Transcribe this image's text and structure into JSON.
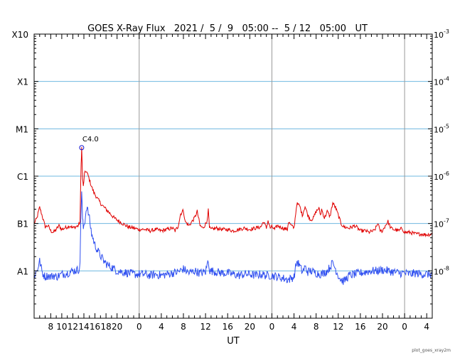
{
  "chart_data": {
    "type": "line",
    "title": "GOES X-Ray Flux   2021 /  5 /  9   05:00 --  5 / 12   05:00   UT",
    "xlabel": "UT",
    "ylabel": "",
    "y_scale": "log",
    "ylim": [
      1e-09,
      0.001
    ],
    "xlim": [
      0,
      72
    ],
    "x_units": "hours since 2021-05-09 05:00 UT",
    "x_tick_labels": [
      {
        "x": 3,
        "label": "8"
      },
      {
        "x": 5,
        "label": "10"
      },
      {
        "x": 7,
        "label": "12"
      },
      {
        "x": 9,
        "label": "14"
      },
      {
        "x": 11,
        "label": "16"
      },
      {
        "x": 13,
        "label": "18"
      },
      {
        "x": 15,
        "label": "20"
      },
      {
        "x": 19,
        "label": "0"
      },
      {
        "x": 23,
        "label": "4"
      },
      {
        "x": 27,
        "label": "8"
      },
      {
        "x": 31,
        "label": "12"
      },
      {
        "x": 35,
        "label": "16"
      },
      {
        "x": 39,
        "label": "20"
      },
      {
        "x": 43,
        "label": "0"
      },
      {
        "x": 47,
        "label": "4"
      },
      {
        "x": 51,
        "label": "8"
      },
      {
        "x": 55,
        "label": "12"
      },
      {
        "x": 59,
        "label": "16"
      },
      {
        "x": 63,
        "label": "20"
      },
      {
        "x": 67,
        "label": "0"
      },
      {
        "x": 71,
        "label": "4"
      }
    ],
    "day_boundaries_x": [
      19,
      43,
      67
    ],
    "left_axis_labels": [
      {
        "value": 1e-08,
        "label": "A1"
      },
      {
        "value": 1e-07,
        "label": "B1"
      },
      {
        "value": 1e-06,
        "label": "C1"
      },
      {
        "value": 1e-05,
        "label": "M1"
      },
      {
        "value": 0.0001,
        "label": "X1"
      },
      {
        "value": 0.001,
        "label": "X10"
      }
    ],
    "right_axis_labels": [
      {
        "value": 1e-08,
        "label": "10",
        "exp": "-8"
      },
      {
        "value": 1e-07,
        "label": "10",
        "exp": "-7"
      },
      {
        "value": 1e-06,
        "label": "10",
        "exp": "-6"
      },
      {
        "value": 1e-05,
        "label": "10",
        "exp": "-5"
      },
      {
        "value": 0.0001,
        "label": "10",
        "exp": "-4"
      },
      {
        "value": 0.001,
        "label": "10",
        "exp": "-3"
      }
    ],
    "grid_lines_y": [
      1e-08,
      1e-07,
      1e-06,
      1e-05,
      0.0001
    ],
    "annotation": {
      "x": 8.6,
      "y": 4e-06,
      "label": "C4.0"
    },
    "series": [
      {
        "color": "#e00000",
        "points": [
          [
            0,
            1e-07
          ],
          [
            0.5,
            1.3e-07
          ],
          [
            1,
            2.2e-07
          ],
          [
            1.5,
            1.4e-07
          ],
          [
            2,
            8.5e-08
          ],
          [
            2.5,
            9e-08
          ],
          [
            3,
            7e-08
          ],
          [
            3.5,
            6.5e-08
          ],
          [
            4,
            7.5e-08
          ],
          [
            4.5,
            9e-08
          ],
          [
            5,
            7.5e-08
          ],
          [
            5.5,
            8e-08
          ],
          [
            6,
            8.5e-08
          ],
          [
            6.5,
            9e-08
          ],
          [
            7,
            8e-08
          ],
          [
            7.5,
            8.5e-08
          ],
          [
            8,
            9e-08
          ],
          [
            8.3,
            1.1e-07
          ],
          [
            8.5,
            1.8e-06
          ],
          [
            8.6,
            4e-06
          ],
          [
            8.75,
            9e-07
          ],
          [
            8.9,
            6e-07
          ],
          [
            9.1,
            1.1e-06
          ],
          [
            9.4,
            1.3e-06
          ],
          [
            9.8,
            1e-06
          ],
          [
            10.3,
            6.5e-07
          ],
          [
            10.8,
            4.5e-07
          ],
          [
            11.5,
            3.3e-07
          ],
          [
            12.2,
            2.5e-07
          ],
          [
            13,
            2e-07
          ],
          [
            13.8,
            1.6e-07
          ],
          [
            14.5,
            1.3e-07
          ],
          [
            15.2,
            1.15e-07
          ],
          [
            16,
            1e-07
          ],
          [
            17,
            8.5e-08
          ],
          [
            18,
            8e-08
          ],
          [
            19,
            7.5e-08
          ],
          [
            20,
            7.5e-08
          ],
          [
            21,
            7e-08
          ],
          [
            22,
            7.5e-08
          ],
          [
            23,
            7e-08
          ],
          [
            24,
            7.5e-08
          ],
          [
            25,
            8e-08
          ],
          [
            25.5,
            7e-08
          ],
          [
            26,
            8.5e-08
          ],
          [
            26.5,
            1.6e-07
          ],
          [
            27,
            1.9e-07
          ],
          [
            27.3,
            1.1e-07
          ],
          [
            28,
            9e-08
          ],
          [
            29,
            1.3e-07
          ],
          [
            29.5,
            1.8e-07
          ],
          [
            30,
            9e-08
          ],
          [
            30.5,
            8e-08
          ],
          [
            31.2,
            1.05e-07
          ],
          [
            31.5,
            1.9e-07
          ],
          [
            31.7,
            8e-08
          ],
          [
            32,
            7.5e-08
          ],
          [
            33,
            8e-08
          ],
          [
            34,
            7.5e-08
          ],
          [
            35,
            7.5e-08
          ],
          [
            36,
            7e-08
          ],
          [
            37,
            7.5e-08
          ],
          [
            38,
            8e-08
          ],
          [
            39,
            7.5e-08
          ],
          [
            40,
            8e-08
          ],
          [
            41,
            8.5e-08
          ],
          [
            41.5,
            1.1e-07
          ],
          [
            42,
            8e-08
          ],
          [
            42.3,
            1.15e-07
          ],
          [
            42.7,
            8e-08
          ],
          [
            43,
            8.5e-08
          ],
          [
            43.5,
            7.5e-08
          ],
          [
            44,
            9e-08
          ],
          [
            45,
            8e-08
          ],
          [
            45.8,
            7.5e-08
          ],
          [
            46,
            1.1e-07
          ],
          [
            46.5,
            9e-08
          ],
          [
            47,
            8e-08
          ],
          [
            47.5,
            2.6e-07
          ],
          [
            48,
            2.4e-07
          ],
          [
            48.5,
            1.5e-07
          ],
          [
            49,
            2.3e-07
          ],
          [
            49.5,
            1.5e-07
          ],
          [
            50,
            1.2e-07
          ],
          [
            50.5,
            1.3e-07
          ],
          [
            51,
            1.8e-07
          ],
          [
            51.5,
            2.1e-07
          ],
          [
            51.8,
            1.5e-07
          ],
          [
            52,
            2e-07
          ],
          [
            52.5,
            1.3e-07
          ],
          [
            53,
            1.8e-07
          ],
          [
            53.5,
            1.4e-07
          ],
          [
            54,
            2.7e-07
          ],
          [
            54.5,
            2.2e-07
          ],
          [
            55,
            1.5e-07
          ],
          [
            55.5,
            1e-07
          ],
          [
            56,
            8.5e-08
          ],
          [
            57,
            8e-08
          ],
          [
            58,
            9e-08
          ],
          [
            58.5,
            8e-08
          ],
          [
            59,
            7e-08
          ],
          [
            60,
            7e-08
          ],
          [
            60.5,
            6.5e-08
          ],
          [
            61,
            6.8e-08
          ],
          [
            61.5,
            7e-08
          ],
          [
            62,
            9e-08
          ],
          [
            62.2,
            1.05e-07
          ],
          [
            62.5,
            7e-08
          ],
          [
            63,
            7e-08
          ],
          [
            63.5,
            9e-08
          ],
          [
            64,
            1.1e-07
          ],
          [
            64.5,
            8e-08
          ],
          [
            65,
            7.5e-08
          ],
          [
            66,
            7e-08
          ],
          [
            66.5,
            8e-08
          ],
          [
            67,
            6.5e-08
          ],
          [
            68,
            6.5e-08
          ],
          [
            69,
            6e-08
          ],
          [
            70,
            6e-08
          ],
          [
            71,
            5.8e-08
          ],
          [
            72,
            6e-08
          ]
        ]
      },
      {
        "color": "#3050f0",
        "points": [
          [
            0,
            8e-09
          ],
          [
            0.5,
            1e-08
          ],
          [
            1,
            1.6e-08
          ],
          [
            1.5,
            9e-09
          ],
          [
            2,
            7.5e-09
          ],
          [
            2.5,
            8e-09
          ],
          [
            3,
            7.5e-09
          ],
          [
            3.5,
            8e-09
          ],
          [
            4,
            7.5e-09
          ],
          [
            5,
            8.5e-09
          ],
          [
            6,
            9e-09
          ],
          [
            7,
            1e-08
          ],
          [
            8,
            1.05e-08
          ],
          [
            8.3,
            1.3e-08
          ],
          [
            8.45,
            1.5e-07
          ],
          [
            8.6,
            4.5e-07
          ],
          [
            8.75,
            1.3e-07
          ],
          [
            8.9,
            8e-08
          ],
          [
            9.2,
            1.2e-07
          ],
          [
            9.5,
            2.3e-07
          ],
          [
            9.9,
            1.5e-07
          ],
          [
            10.4,
            6e-08
          ],
          [
            11,
            3.5e-08
          ],
          [
            11.8,
            2.3e-08
          ],
          [
            12.6,
            1.6e-08
          ],
          [
            13.4,
            1.3e-08
          ],
          [
            14.2,
            1.15e-08
          ],
          [
            15,
            1e-08
          ],
          [
            16,
            9.5e-09
          ],
          [
            17,
            9e-09
          ],
          [
            18,
            8.5e-09
          ],
          [
            19,
            8.5e-09
          ],
          [
            20,
            8.5e-09
          ],
          [
            21,
            8e-09
          ],
          [
            22,
            8.5e-09
          ],
          [
            23,
            8e-09
          ],
          [
            24,
            8.5e-09
          ],
          [
            25,
            9e-09
          ],
          [
            26,
            9.5e-09
          ],
          [
            27,
            1.1e-08
          ],
          [
            27.5,
            1e-08
          ],
          [
            28,
            9e-09
          ],
          [
            29,
            1e-08
          ],
          [
            30,
            9e-09
          ],
          [
            31,
            9.5e-09
          ],
          [
            31.5,
            1.7e-08
          ],
          [
            31.8,
            9.5e-09
          ],
          [
            32,
            1e-08
          ],
          [
            33,
            9.5e-09
          ],
          [
            34,
            9e-09
          ],
          [
            35,
            9e-09
          ],
          [
            36,
            8.5e-09
          ],
          [
            37,
            8e-09
          ],
          [
            38,
            8.5e-09
          ],
          [
            39,
            8.5e-09
          ],
          [
            40,
            8e-09
          ],
          [
            41,
            8.5e-09
          ],
          [
            42,
            8e-09
          ],
          [
            43,
            8e-09
          ],
          [
            44,
            7.5e-09
          ],
          [
            45,
            7e-09
          ],
          [
            46,
            6.5e-09
          ],
          [
            47,
            7.5e-09
          ],
          [
            47.5,
            1.6e-08
          ],
          [
            48,
            1.3e-08
          ],
          [
            48.5,
            9.5e-09
          ],
          [
            49,
            1.2e-08
          ],
          [
            49.5,
            9.5e-09
          ],
          [
            50,
            1e-08
          ],
          [
            51,
            9e-09
          ],
          [
            52,
            8.5e-09
          ],
          [
            53,
            1e-08
          ],
          [
            53.5,
            1.2e-08
          ],
          [
            54,
            1.5e-08
          ],
          [
            54.5,
            1.1e-08
          ],
          [
            55,
            8e-09
          ],
          [
            55.5,
            6.5e-09
          ],
          [
            56,
            6e-09
          ],
          [
            56.5,
            7e-09
          ],
          [
            57,
            8e-09
          ],
          [
            58,
            8.5e-09
          ],
          [
            59,
            9e-09
          ],
          [
            60,
            9.5e-09
          ],
          [
            61,
            1e-08
          ],
          [
            62,
            1e-08
          ],
          [
            63,
            1.05e-08
          ],
          [
            64,
            1e-08
          ],
          [
            65,
            9.5e-09
          ],
          [
            66,
            9e-09
          ],
          [
            67,
            9e-09
          ],
          [
            68,
            8.5e-09
          ],
          [
            69,
            9e-09
          ],
          [
            70,
            8.5e-09
          ],
          [
            71,
            8.5e-09
          ],
          [
            72,
            8.5e-09
          ]
        ]
      }
    ],
    "grid": true,
    "colors": {
      "grid_y": "#6fb8e0",
      "grid_x": "#999999",
      "axis": "#000000"
    }
  },
  "footer_note": "plot_goes_xray2m"
}
